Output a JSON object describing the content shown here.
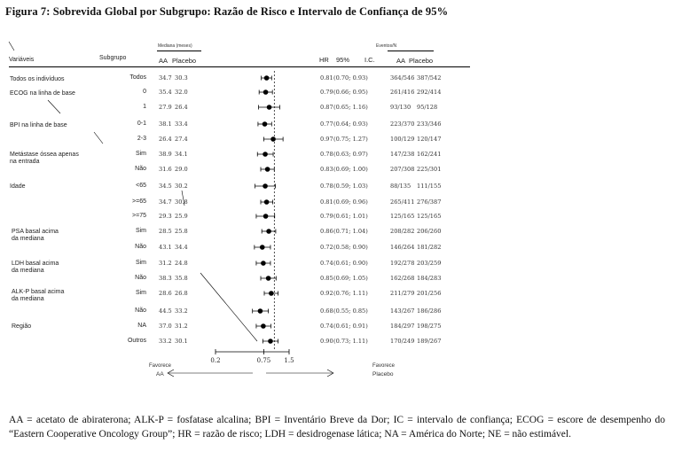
{
  "title": "Figura 7: Sobrevida Global por Subgrupo: Razão de Risco e Intervalo de Confiança de 95%",
  "header": {
    "variaveis": "Variáveis",
    "subgrupo": "Subgrupo",
    "mediana": "Mediana (meses)",
    "aa": "AA",
    "placebo": "Placebo",
    "hr": "HR",
    "ci95": "95%",
    "ic": "I.C.",
    "eventos": "Eventos/N",
    "ev_aa": "AA",
    "ev_placebo": "Placebo"
  },
  "group_labels": [
    {
      "id": "todos",
      "lines": [
        "Todos os indivíduos"
      ]
    },
    {
      "id": "ecog",
      "lines": [
        "ECOG na linha de base"
      ]
    },
    {
      "id": "bpi",
      "lines": [
        "BPI na linha de base"
      ]
    },
    {
      "id": "metastase",
      "lines": [
        "Metástase óssea apenas",
        "na entrada"
      ]
    },
    {
      "id": "idade",
      "lines": [
        "Idade"
      ]
    },
    {
      "id": "psa",
      "lines": [
        "PSA basal acima",
        "da mediana"
      ]
    },
    {
      "id": "ldh",
      "lines": [
        "LDH basal acima",
        "da mediana"
      ]
    },
    {
      "id": "alkp",
      "lines": [
        "ALK-P basal acima",
        "da mediana"
      ]
    },
    {
      "id": "regiao",
      "lines": [
        "Região"
      ]
    }
  ],
  "chart_data": {
    "type": "scatter",
    "title": "Figura 7: Sobrevida Global por Subgrupo: Razão de Risco e Intervalo de Confiança de 95%",
    "x_scale": "log",
    "x_ticks": [
      "0.2",
      "0.75",
      "1.5"
    ],
    "x_tick_values": [
      0.2,
      0.75,
      1.5
    ],
    "xlim": [
      0.2,
      1.5
    ],
    "reference_line": 1.0,
    "favors_left": [
      "Favorece",
      "AA"
    ],
    "favors_right": [
      "Favorece",
      "Placebo"
    ],
    "rows": [
      {
        "subgroup": "Todos",
        "med_aa": "34.7",
        "med_placebo": "30.3",
        "hr": 0.81,
        "hr_text": "0.81",
        "ci": [
          0.7,
          0.93
        ],
        "ci_text": "(0.70; 0.93)",
        "ev_aa": "364/546",
        "ev_placebo": "387/542"
      },
      {
        "subgroup": "0",
        "med_aa": "35.4",
        "med_placebo": "32.0",
        "hr": 0.79,
        "hr_text": "0.79",
        "ci": [
          0.66,
          0.95
        ],
        "ci_text": "(0.66; 0.95)",
        "ev_aa": "261/416",
        "ev_placebo": "292/414"
      },
      {
        "subgroup": "1",
        "med_aa": "27.9",
        "med_placebo": "26.4",
        "hr": 0.87,
        "hr_text": "0.87",
        "ci": [
          0.65,
          1.16
        ],
        "ci_text": "(0.65; 1.16)",
        "ev_aa": "93/130",
        "ev_placebo": "95/128"
      },
      {
        "subgroup": "0-1",
        "med_aa": "38.1",
        "med_placebo": "33.4",
        "hr": 0.77,
        "hr_text": "0.77",
        "ci": [
          0.64,
          0.93
        ],
        "ci_text": "(0.64; 0.93)",
        "ev_aa": "223/370",
        "ev_placebo": "233/346"
      },
      {
        "subgroup": "2-3",
        "med_aa": "26.4",
        "med_placebo": "27.4",
        "hr": 0.97,
        "hr_text": "0.97",
        "ci": [
          0.75,
          1.27
        ],
        "ci_text": "(0.75; 1.27)",
        "ev_aa": "100/129",
        "ev_placebo": "120/147"
      },
      {
        "subgroup": "Sim",
        "med_aa": "38.9",
        "med_placebo": "34.1",
        "hr": 0.78,
        "hr_text": "0.78",
        "ci": [
          0.63,
          0.97
        ],
        "ci_text": "(0.63; 0.97)",
        "ev_aa": "147/238",
        "ev_placebo": "162/241"
      },
      {
        "subgroup": "Não",
        "med_aa": "31.6",
        "med_placebo": "29.0",
        "hr": 0.83,
        "hr_text": "0.83",
        "ci": [
          0.69,
          1.0
        ],
        "ci_text": "(0.69; 1.00)",
        "ev_aa": "207/308",
        "ev_placebo": "225/301"
      },
      {
        "subgroup": "<65",
        "med_aa": "34.5",
        "med_placebo": "30.2",
        "hr": 0.78,
        "hr_text": "0.78",
        "ci": [
          0.59,
          1.03
        ],
        "ci_text": "(0.59; 1.03)",
        "ev_aa": "88/135",
        "ev_placebo": "111/155"
      },
      {
        "subgroup": ">=65",
        "med_aa": "34.7",
        "med_placebo": "30.8",
        "hr": 0.81,
        "hr_text": "0.81",
        "ci": [
          0.69,
          0.96
        ],
        "ci_text": "(0.69; 0.96)",
        "ev_aa": "265/411",
        "ev_placebo": "276/387"
      },
      {
        "subgroup": ">=75",
        "med_aa": "29.3",
        "med_placebo": "25.9",
        "hr": 0.79,
        "hr_text": "0.79",
        "ci": [
          0.61,
          1.01
        ],
        "ci_text": "(0.61; 1.01)",
        "ev_aa": "125/165",
        "ev_placebo": "125/165"
      },
      {
        "subgroup": "Sim",
        "med_aa": "28.5",
        "med_placebo": "25.8",
        "hr": 0.86,
        "hr_text": "0.86",
        "ci": [
          0.71,
          1.04
        ],
        "ci_text": "(0.71; 1.04)",
        "ev_aa": "208/282",
        "ev_placebo": "206/260"
      },
      {
        "subgroup": "Não",
        "med_aa": "43.1",
        "med_placebo": "34.4",
        "hr": 0.72,
        "hr_text": "0.72",
        "ci": [
          0.58,
          0.9
        ],
        "ci_text": "(0.58; 0.90)",
        "ev_aa": "146/264",
        "ev_placebo": "181/282"
      },
      {
        "subgroup": "Sim",
        "med_aa": "31.2",
        "med_placebo": "24.8",
        "hr": 0.74,
        "hr_text": "0.74",
        "ci": [
          0.61,
          0.9
        ],
        "ci_text": "(0.61; 0.90)",
        "ev_aa": "192/278",
        "ev_placebo": "203/259"
      },
      {
        "subgroup": "Não",
        "med_aa": "38.3",
        "med_placebo": "35.8",
        "hr": 0.85,
        "hr_text": "0.85",
        "ci": [
          0.69,
          1.05
        ],
        "ci_text": "(0.69; 1.05)",
        "ev_aa": "162/268",
        "ev_placebo": "184/283"
      },
      {
        "subgroup": "Sim",
        "med_aa": "28.6",
        "med_placebo": "26.8",
        "hr": 0.92,
        "hr_text": "0.92",
        "ci": [
          0.76,
          1.11
        ],
        "ci_text": "(0.76; 1.11)",
        "ev_aa": "211/279",
        "ev_placebo": "201/256"
      },
      {
        "subgroup": "Não",
        "med_aa": "44.5",
        "med_placebo": "33.2",
        "hr": 0.68,
        "hr_text": "0.68",
        "ci": [
          0.55,
          0.85
        ],
        "ci_text": "(0.55; 0.85)",
        "ev_aa": "143/267",
        "ev_placebo": "186/286"
      },
      {
        "subgroup": "NA",
        "med_aa": "37.0",
        "med_placebo": "31.2",
        "hr": 0.74,
        "hr_text": "0.74",
        "ci": [
          0.61,
          0.91
        ],
        "ci_text": "(0.61; 0.91)",
        "ev_aa": "184/297",
        "ev_placebo": "198/275"
      },
      {
        "subgroup": "Outros",
        "med_aa": "33.2",
        "med_placebo": "30.1",
        "hr": 0.9,
        "hr_text": "0.90",
        "ci": [
          0.73,
          1.11
        ],
        "ci_text": "(0.73; 1.11)",
        "ev_aa": "170/249",
        "ev_placebo": "189/267"
      }
    ]
  },
  "footnote": "AA = acetato de abiraterona; ALK-P = fosfatase alcalina; BPI = Inventário Breve da Dor; IC = intervalo de confiança; ECOG = escore de desempenho do “Eastern Cooperative Oncology Group”; HR = razão de risco; LDH = desidrogenase lática; NA = América do Norte; NE = não estimável."
}
